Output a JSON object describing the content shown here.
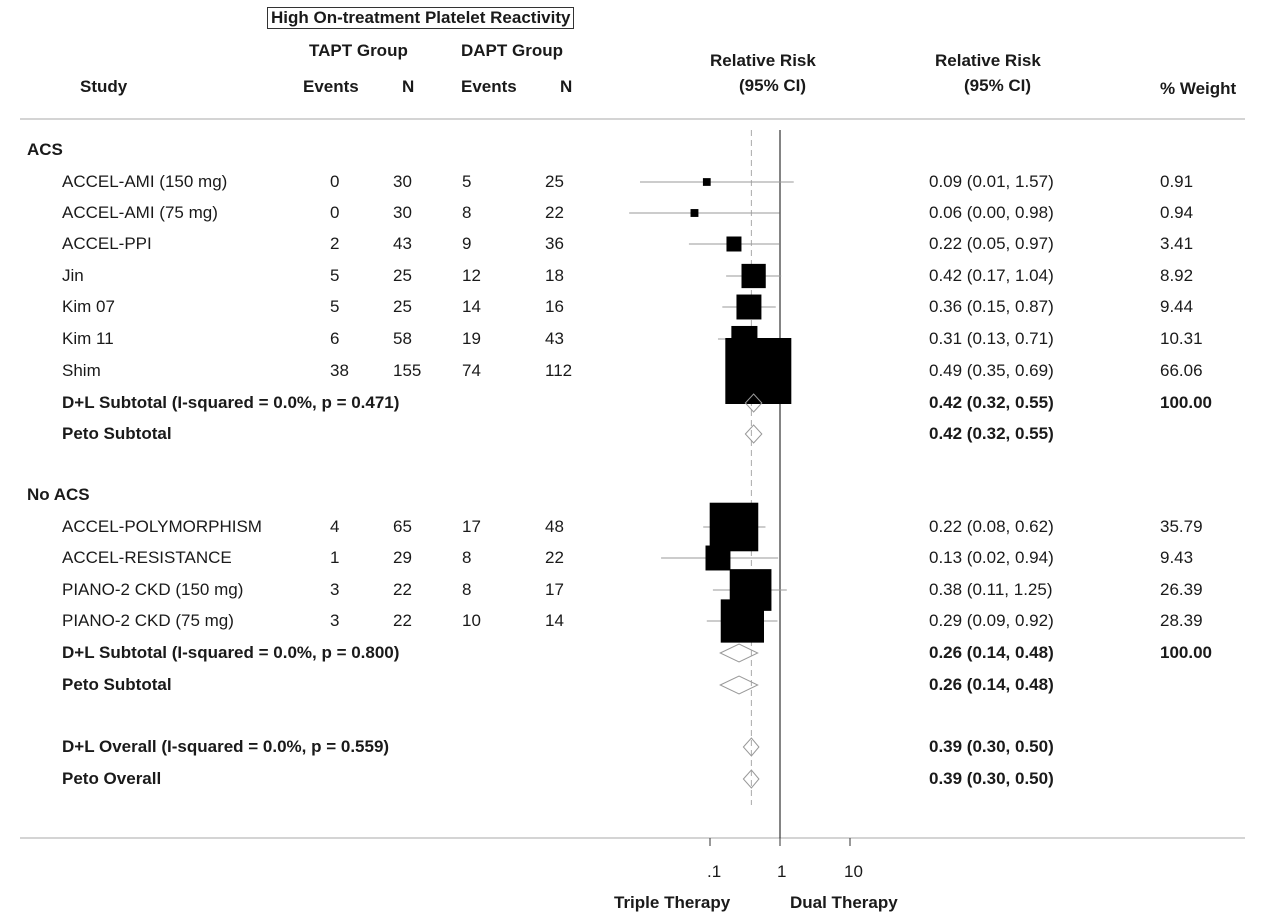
{
  "header": {
    "panel_title": "High On-treatment Platelet Reactivity",
    "tapt_group": "TAPT Group",
    "dapt_group": "DAPT Group",
    "study": "Study",
    "events": "Events",
    "n": "N",
    "rr_plot_1": "Relative Risk",
    "rr_plot_2": "(95% CI)",
    "rr_col_1": "Relative Risk",
    "rr_col_2": "(95% CI)",
    "weight": "% Weight"
  },
  "chart_data": {
    "type": "forest",
    "x_scale": "log",
    "x_ticks": [
      ".1",
      "1",
      "10"
    ],
    "x_tick_values": [
      0.1,
      1,
      10
    ],
    "xlim": [
      0.007,
      16
    ],
    "null_line": 1,
    "overall_line": 0.39,
    "x_direction_labels": {
      "left": "Triple Therapy",
      "right": "Dual Therapy"
    },
    "groups": [
      {
        "name": "ACS",
        "studies": [
          {
            "label": "ACCEL-AMI (150 mg)",
            "tapt_events": "0",
            "tapt_n": "30",
            "dapt_events": "5",
            "dapt_n": "25",
            "rr": 0.09,
            "lo": 0.01,
            "hi": 1.57,
            "rr_text": "0.09 (0.01, 1.57)",
            "weight": 0.91,
            "weight_text": "0.91"
          },
          {
            "label": "ACCEL-AMI (75 mg)",
            "tapt_events": "0",
            "tapt_n": "30",
            "dapt_events": "8",
            "dapt_n": "22",
            "rr": 0.06,
            "lo": 0.0,
            "hi": 0.98,
            "rr_text": "0.06 (0.00, 0.98)",
            "weight": 0.94,
            "weight_text": "0.94"
          },
          {
            "label": "ACCEL-PPI",
            "tapt_events": "2",
            "tapt_n": "43",
            "dapt_events": "9",
            "dapt_n": "36",
            "rr": 0.22,
            "lo": 0.05,
            "hi": 0.97,
            "rr_text": "0.22 (0.05, 0.97)",
            "weight": 3.41,
            "weight_text": "3.41"
          },
          {
            "label": "Jin",
            "tapt_events": "5",
            "tapt_n": "25",
            "dapt_events": "12",
            "dapt_n": "18",
            "rr": 0.42,
            "lo": 0.17,
            "hi": 1.04,
            "rr_text": "0.42 (0.17, 1.04)",
            "weight": 8.92,
            "weight_text": "8.92"
          },
          {
            "label": "Kim  07",
            "tapt_events": "5",
            "tapt_n": "25",
            "dapt_events": "14",
            "dapt_n": "16",
            "rr": 0.36,
            "lo": 0.15,
            "hi": 0.87,
            "rr_text": "0.36 (0.15, 0.87)",
            "weight": 9.44,
            "weight_text": "9.44"
          },
          {
            "label": "Kim 11",
            "tapt_events": "6",
            "tapt_n": "58",
            "dapt_events": "19",
            "dapt_n": "43",
            "rr": 0.31,
            "lo": 0.13,
            "hi": 0.71,
            "rr_text": "0.31 (0.13, 0.71)",
            "weight": 10.31,
            "weight_text": "10.31"
          },
          {
            "label": "Shim",
            "tapt_events": "38",
            "tapt_n": "155",
            "dapt_events": "74",
            "dapt_n": "112",
            "rr": 0.49,
            "lo": 0.35,
            "hi": 0.69,
            "rr_text": "0.49 (0.35, 0.69)",
            "weight": 66.06,
            "weight_text": "66.06"
          }
        ],
        "subtotal_dl": {
          "label": "D+L Subtotal  (I-squared = 0.0%, p = 0.471)",
          "rr": 0.42,
          "lo": 0.32,
          "hi": 0.55,
          "rr_text": "0.42 (0.32, 0.55)",
          "weight_text": "100.00"
        },
        "subtotal_peto": {
          "label": "Peto Subtotal",
          "rr": 0.42,
          "lo": 0.32,
          "hi": 0.55,
          "rr_text": "0.42 (0.32, 0.55)"
        }
      },
      {
        "name": "No ACS",
        "studies": [
          {
            "label": "ACCEL-POLYMORPHISM",
            "tapt_events": "4",
            "tapt_n": "65",
            "dapt_events": "17",
            "dapt_n": "48",
            "rr": 0.22,
            "lo": 0.08,
            "hi": 0.62,
            "rr_text": "0.22 (0.08, 0.62)",
            "weight": 35.79,
            "weight_text": "35.79"
          },
          {
            "label": "ACCEL-RESISTANCE",
            "tapt_events": "1",
            "tapt_n": "29",
            "dapt_events": "8",
            "dapt_n": "22",
            "rr": 0.13,
            "lo": 0.02,
            "hi": 0.94,
            "rr_text": "0.13 (0.02, 0.94)",
            "weight": 9.43,
            "weight_text": "9.43"
          },
          {
            "label": "PIANO-2 CKD (150 mg)",
            "tapt_events": "3",
            "tapt_n": "22",
            "dapt_events": "8",
            "dapt_n": "17",
            "rr": 0.38,
            "lo": 0.11,
            "hi": 1.25,
            "rr_text": "0.38 (0.11, 1.25)",
            "weight": 26.39,
            "weight_text": "26.39"
          },
          {
            "label": "PIANO-2 CKD (75 mg)",
            "tapt_events": "3",
            "tapt_n": "22",
            "dapt_events": "10",
            "dapt_n": "14",
            "rr": 0.29,
            "lo": 0.09,
            "hi": 0.92,
            "rr_text": "0.29 (0.09, 0.92)",
            "weight": 28.39,
            "weight_text": "28.39"
          }
        ],
        "subtotal_dl": {
          "label": "D+L Subtotal  (I-squared = 0.0%, p = 0.800)",
          "rr": 0.26,
          "lo": 0.14,
          "hi": 0.48,
          "rr_text": "0.26 (0.14, 0.48)",
          "weight_text": "100.00"
        },
        "subtotal_peto": {
          "label": "Peto Subtotal",
          "rr": 0.26,
          "lo": 0.14,
          "hi": 0.48,
          "rr_text": "0.26 (0.14, 0.48)"
        }
      }
    ],
    "overall_dl": {
      "label": "D+L Overall  (I-squared = 0.0%, p = 0.559)",
      "rr": 0.39,
      "lo": 0.3,
      "hi": 0.5,
      "rr_text": "0.39 (0.30, 0.50)"
    },
    "overall_peto": {
      "label": "Peto Overall",
      "rr": 0.39,
      "lo": 0.3,
      "hi": 0.5,
      "rr_text": "0.39 (0.30, 0.50)"
    }
  }
}
